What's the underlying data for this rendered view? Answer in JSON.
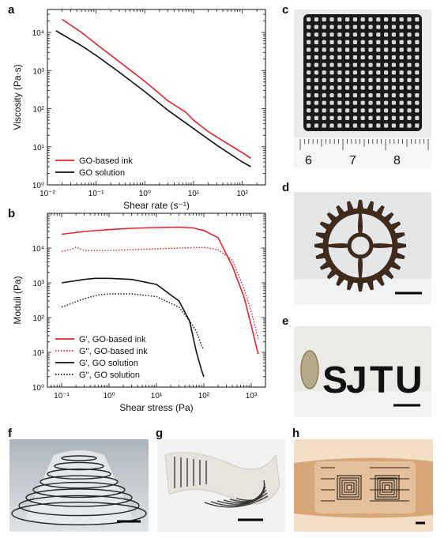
{
  "panels": {
    "a": "a",
    "b": "b",
    "c": "c",
    "d": "d",
    "e": "e",
    "f": "f",
    "g": "g",
    "h": "h"
  },
  "photos": {
    "ruler_numbers": [
      "6",
      "7",
      "8"
    ],
    "letters": [
      "S",
      "J",
      "T",
      "U"
    ]
  },
  "colors": {
    "red": "#e8202a",
    "black": "#111111"
  },
  "chart_data": [
    {
      "type": "line",
      "id": "a",
      "xlabel": "Shear rate (s⁻¹)",
      "ylabel": "Viscosity (Pa·s)",
      "xscale": "log",
      "yscale": "log",
      "xlim": [
        0.01,
        300
      ],
      "ylim": [
        1,
        40000
      ],
      "xticks": [
        "10⁻²",
        "10⁻¹",
        "10⁰",
        "10¹",
        "10²"
      ],
      "yticks": [
        "10⁰",
        "10¹",
        "10²",
        "10³",
        "10⁴"
      ],
      "legend_position": "bottom-left",
      "series": [
        {
          "name": "GO-based ink",
          "style": "solid",
          "color": "#e8202a",
          "x": [
            0.02,
            0.05,
            0.1,
            0.3,
            1,
            3,
            7,
            10,
            20,
            50,
            100,
            150
          ],
          "y": [
            22000,
            10000,
            5000,
            1700,
            520,
            160,
            80,
            50,
            25,
            12,
            7,
            5
          ]
        },
        {
          "name": "GO solution",
          "style": "solid",
          "color": "#111111",
          "x": [
            0.015,
            0.05,
            0.1,
            0.3,
            1,
            3,
            10,
            30,
            100,
            150
          ],
          "y": [
            11000,
            4500,
            2500,
            900,
            280,
            90,
            30,
            11,
            4,
            3
          ]
        }
      ]
    },
    {
      "type": "line",
      "id": "b",
      "xlabel": "Shear stress (Pa)",
      "ylabel": "Moduli (Pa)",
      "xscale": "log",
      "yscale": "log",
      "xlim": [
        0.05,
        2000
      ],
      "ylim": [
        1,
        100000
      ],
      "xticks": [
        "10⁻¹",
        "10⁰",
        "10¹",
        "10²",
        "10³"
      ],
      "yticks": [
        "10⁰",
        "10¹",
        "10²",
        "10³",
        "10⁴"
      ],
      "legend_position": "bottom-left",
      "series": [
        {
          "name": "G', GO-based ink",
          "style": "solid",
          "color": "#e8202a",
          "x": [
            0.1,
            0.3,
            1,
            3,
            10,
            30,
            60,
            100,
            200,
            400,
            700,
            1000,
            1400
          ],
          "y": [
            25000,
            30000,
            34000,
            37000,
            39000,
            40000,
            38000,
            32000,
            20000,
            3000,
            400,
            60,
            9
          ]
        },
        {
          "name": "G'', GO-based ink",
          "style": "dotted",
          "color": "#e8202a",
          "x": [
            0.1,
            0.15,
            0.2,
            0.3,
            1,
            3,
            10,
            30,
            100,
            200,
            400,
            700,
            1000,
            1400
          ],
          "y": [
            8000,
            9000,
            10500,
            8500,
            8500,
            9000,
            9500,
            10000,
            10500,
            9000,
            4500,
            700,
            150,
            25
          ]
        },
        {
          "name": "G', GO solution",
          "style": "solid",
          "color": "#111111",
          "x": [
            0.1,
            0.3,
            0.5,
            1,
            3,
            10,
            30,
            50,
            70,
            90,
            100
          ],
          "y": [
            1000,
            1250,
            1350,
            1350,
            1250,
            900,
            300,
            80,
            10,
            3,
            2
          ]
        },
        {
          "name": "G'', GO solution",
          "style": "dotted",
          "color": "#111111",
          "x": [
            0.1,
            0.3,
            0.6,
            1,
            3,
            10,
            30,
            50,
            70,
            90,
            100
          ],
          "y": [
            200,
            350,
            450,
            480,
            480,
            400,
            200,
            80,
            40,
            15,
            12
          ]
        }
      ]
    }
  ]
}
